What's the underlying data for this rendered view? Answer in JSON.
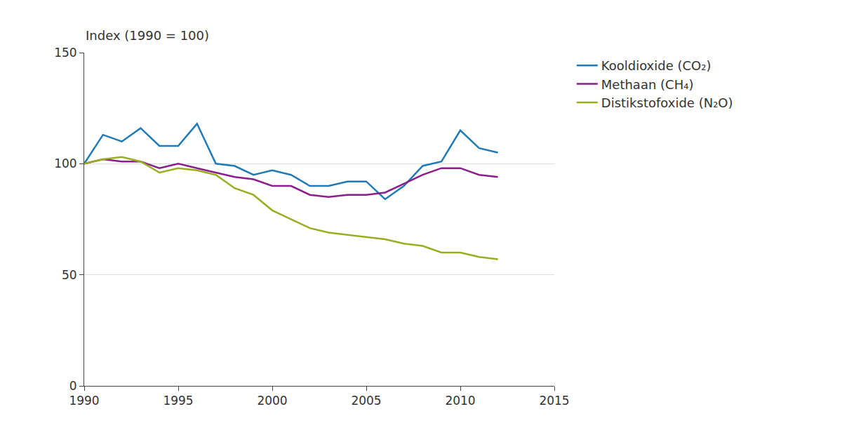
{
  "chart_data": {
    "type": "line",
    "y_label": "Index (1990 = 100)",
    "x": [
      1990,
      1991,
      1992,
      1993,
      1994,
      1995,
      1996,
      1997,
      1998,
      1999,
      2000,
      2001,
      2002,
      2003,
      2004,
      2005,
      2006,
      2007,
      2008,
      2009,
      2010,
      2011,
      2012
    ],
    "series": [
      {
        "name": "Kooldioxide (CO₂)",
        "color": "#1f7ab5",
        "values": [
          100,
          113,
          110,
          116,
          108,
          108,
          118,
          100,
          99,
          95,
          97,
          95,
          90,
          90,
          92,
          92,
          84,
          90,
          99,
          101,
          115,
          107,
          105
        ]
      },
      {
        "name": "Methaan (CH₄)",
        "color": "#8c1d8c",
        "values": [
          100,
          102,
          101,
          101,
          98,
          100,
          98,
          96,
          94,
          93,
          90,
          90,
          86,
          85,
          86,
          86,
          87,
          91,
          95,
          98,
          98,
          95,
          94
        ]
      },
      {
        "name": "Distikstofoxide (N₂O)",
        "color": "#9aad1f",
        "values": [
          100,
          102,
          103,
          101,
          96,
          98,
          97,
          95,
          89,
          86,
          79,
          75,
          71,
          69,
          68,
          67,
          66,
          64,
          63,
          60,
          60,
          58,
          57
        ]
      }
    ],
    "xlim": [
      1990,
      2015
    ],
    "xticks": [
      1990,
      1995,
      2000,
      2005,
      2010,
      2015
    ],
    "ylim": [
      0,
      150
    ],
    "yticks": [
      0,
      50,
      100,
      150
    ],
    "grid": true,
    "legend": "top-right"
  }
}
